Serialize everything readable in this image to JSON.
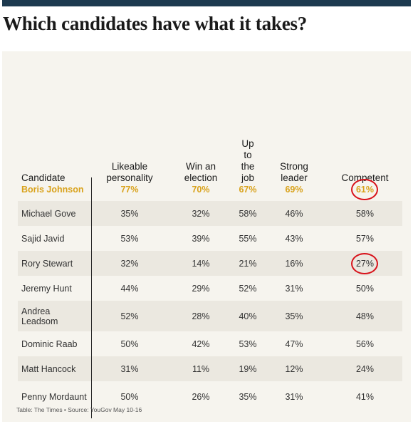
{
  "headline": "Which candidates have what it takes?",
  "columns": [
    "Candidate",
    "Likeable\npersonality",
    "Win an\nelection",
    "Up\nto\nthe\njob",
    "Strong\nleader",
    "Competent"
  ],
  "rows": [
    {
      "candidate": "Boris Johnson",
      "values": [
        "77%",
        "70%",
        "67%",
        "69%",
        "61%"
      ],
      "highlight": true,
      "circled": true
    },
    {
      "candidate": "Michael Gove",
      "values": [
        "35%",
        "32%",
        "58%",
        "46%",
        "58%"
      ]
    },
    {
      "candidate": "Sajid Javid",
      "values": [
        "53%",
        "39%",
        "55%",
        "43%",
        "57%"
      ]
    },
    {
      "candidate": "Rory Stewart",
      "values": [
        "32%",
        "14%",
        "21%",
        "16%",
        "27%"
      ],
      "circled": true
    },
    {
      "candidate": "Jeremy Hunt",
      "values": [
        "44%",
        "29%",
        "52%",
        "31%",
        "50%"
      ]
    },
    {
      "candidate": "Andrea Leadsom",
      "values": [
        "52%",
        "28%",
        "40%",
        "35%",
        "48%"
      ]
    },
    {
      "candidate": "Dominic Raab",
      "values": [
        "50%",
        "42%",
        "53%",
        "47%",
        "56%"
      ]
    },
    {
      "candidate": "Matt Hancock",
      "values": [
        "31%",
        "11%",
        "19%",
        "12%",
        "24%"
      ]
    },
    {
      "candidate": "Penny Mordaunt",
      "values": [
        "50%",
        "26%",
        "35%",
        "31%",
        "41%"
      ]
    }
  ],
  "source": "Table: The Times • Source: YouGov May 10-16",
  "colors": {
    "accent": "#d9a21b",
    "annotation": "#d8131b",
    "rule": "#1d3a4f",
    "card": "#f6f4ee"
  }
}
